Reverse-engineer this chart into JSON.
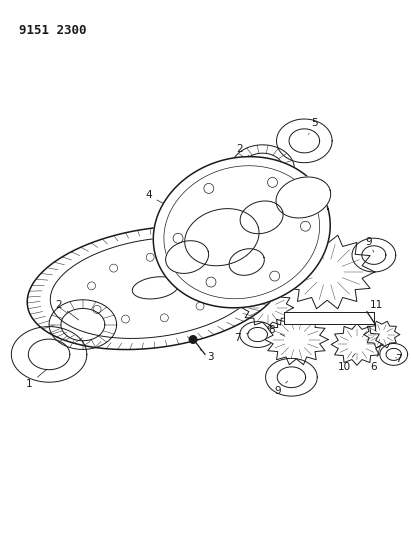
{
  "title": "9151 2300",
  "title_fontsize": 9,
  "title_fontweight": "bold",
  "bg_color": "#ffffff",
  "fig_width": 4.11,
  "fig_height": 5.33,
  "dpi": 100
}
